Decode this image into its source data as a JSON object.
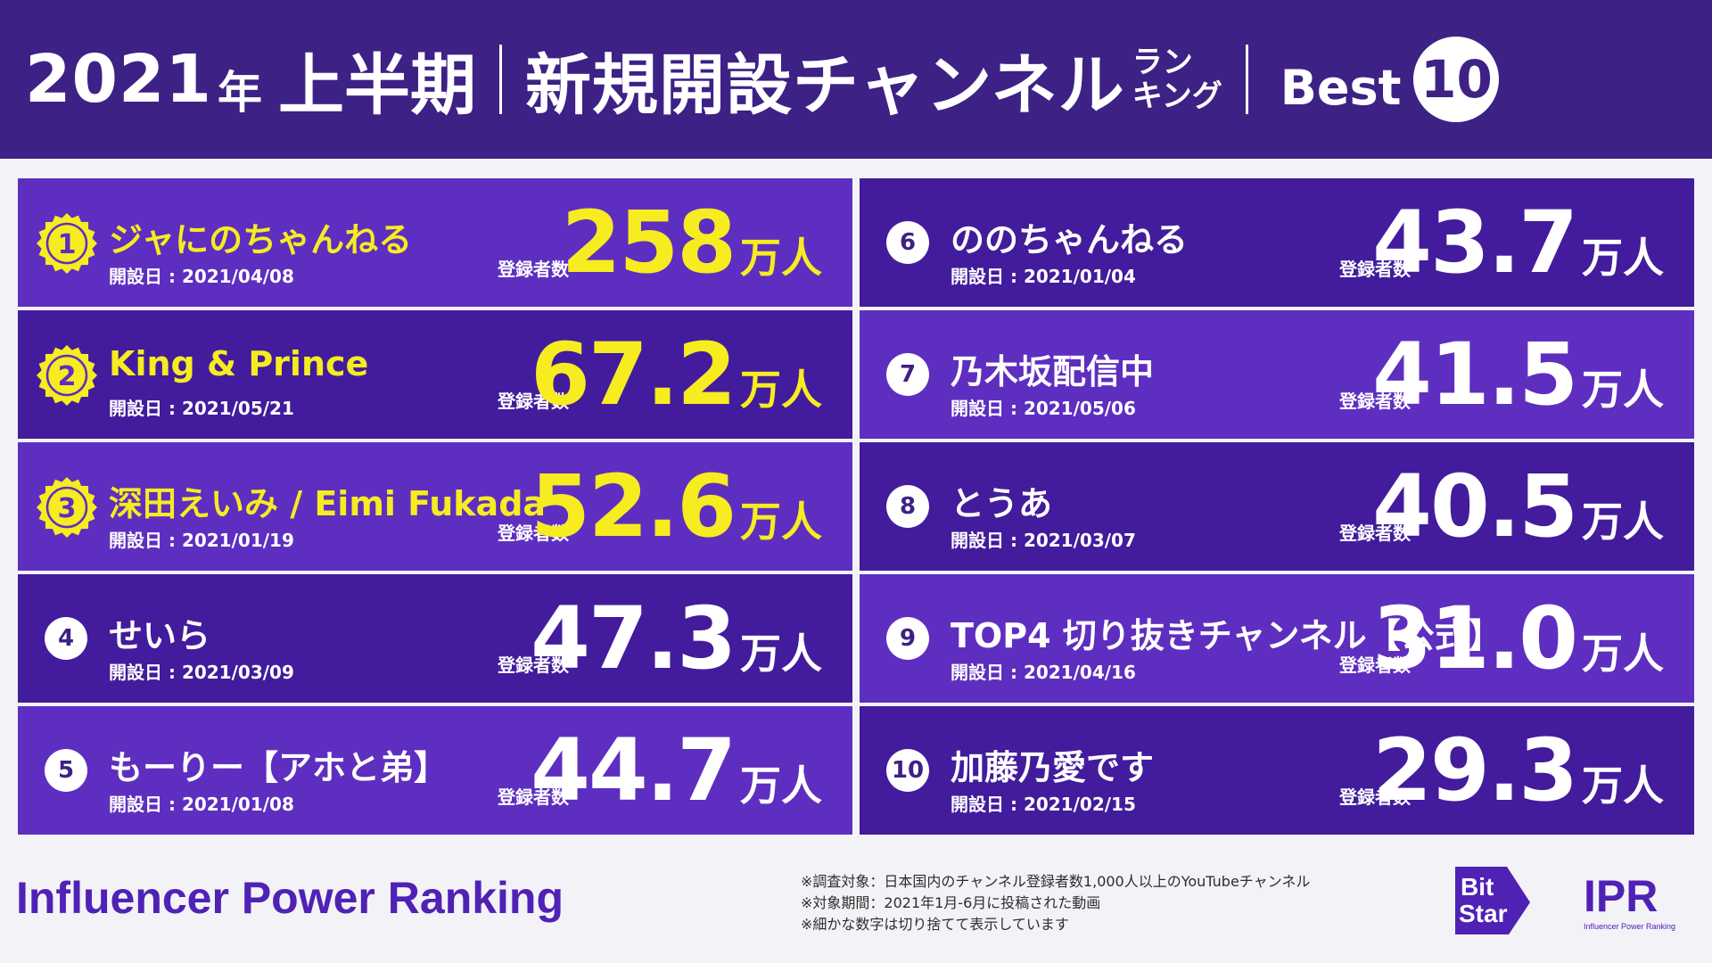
{
  "header": {
    "year": "2021",
    "nen": "年",
    "period": "上半期",
    "title": "新規開設チャンネル",
    "small_top": "ラン",
    "small_bottom": "キング",
    "best": "Best",
    "best_num": "10"
  },
  "colors": {
    "header_bg": "#3d2185",
    "card_light": "#5e2ec0",
    "card_dark": "#421c9c",
    "gold": "#f6ec20"
  },
  "labels": {
    "date_label": "開設日 : ",
    "subscriber_label": "登録者数"
  },
  "ranking": [
    {
      "rank": "1",
      "name": "ジャにのちゃんねる",
      "date": "2021/04/08",
      "value": "258",
      "unit": "万人",
      "medal": true
    },
    {
      "rank": "2",
      "name": "King & Prince",
      "date": "2021/05/21",
      "value": "67.2",
      "unit": "万人",
      "medal": true
    },
    {
      "rank": "3",
      "name": "深田えいみ / Eimi Fukada",
      "date": "2021/01/19",
      "value": "52.6",
      "unit": "万人",
      "medal": true
    },
    {
      "rank": "4",
      "name": "せいら",
      "date": "2021/03/09",
      "value": "47.3",
      "unit": "万人",
      "medal": false
    },
    {
      "rank": "5",
      "name": "もーりー【アホと弟】",
      "date": "2021/01/08",
      "value": "44.7",
      "unit": "万人",
      "medal": false
    },
    {
      "rank": "6",
      "name": "ののちゃんねる",
      "date": "2021/01/04",
      "value": "43.7",
      "unit": "万人",
      "medal": false
    },
    {
      "rank": "7",
      "name": "乃木坂配信中",
      "date": "2021/05/06",
      "value": "41.5",
      "unit": "万人",
      "medal": false
    },
    {
      "rank": "8",
      "name": "とうあ",
      "date": "2021/03/07",
      "value": "40.5",
      "unit": "万人",
      "medal": false
    },
    {
      "rank": "9",
      "name": "TOP4 切り抜きチャンネル【公式】",
      "date": "2021/04/16",
      "value": "31.0",
      "unit": "万人",
      "medal": false
    },
    {
      "rank": "10",
      "name": "加藤乃愛です",
      "date": "2021/02/15",
      "value": "29.3",
      "unit": "万人",
      "medal": false
    }
  ],
  "footer": {
    "title": "Influencer Power Ranking",
    "notes": [
      "※調査対象：日本国内のチャンネル登録者数1,000人以上のYouTubeチャンネル",
      "※対象期間：2021年1月-6月に投稿された動画",
      "※細かな数字は切り捨てて表示しています"
    ],
    "logo_bit_top": "Bit",
    "logo_bit_bottom": "Star",
    "logo_ipr": "IPR",
    "logo_ipr_sub": "Influencer Power Ranking"
  }
}
